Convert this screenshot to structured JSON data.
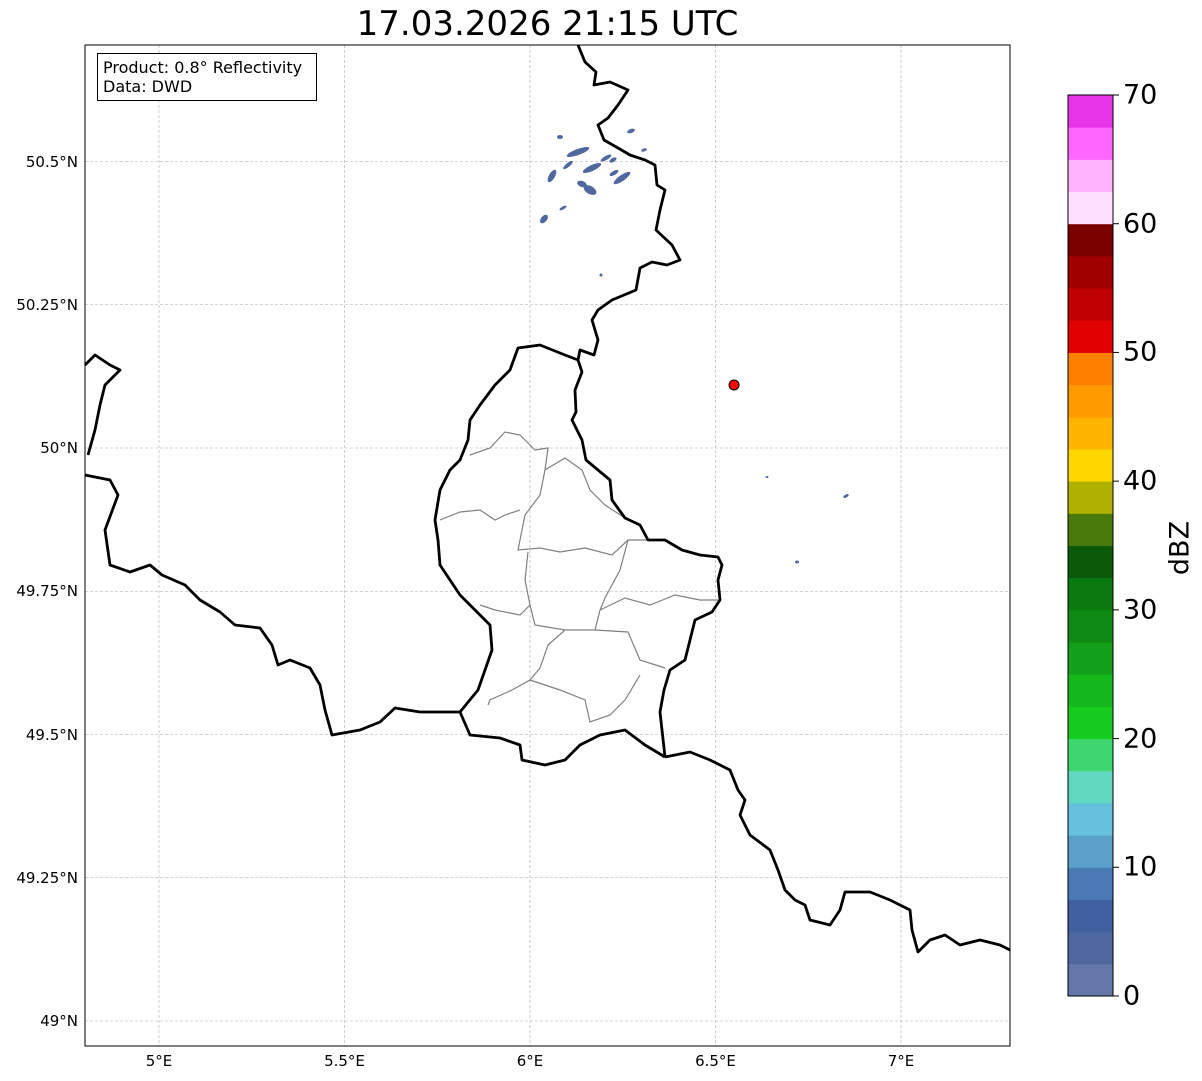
{
  "title": "17.03.2026 21:15 UTC",
  "info_box": {
    "product": "Product: 0.8° Reflectivity",
    "data": "Data: DWD"
  },
  "map": {
    "lat_ticks": [
      {
        "value": 50.5,
        "label": "50.5°N"
      },
      {
        "value": 50.25,
        "label": "50.25°N"
      },
      {
        "value": 50,
        "label": "50°N"
      },
      {
        "value": 49.75,
        "label": "49.75°N"
      },
      {
        "value": 49.5,
        "label": "49.5°N"
      },
      {
        "value": 49.25,
        "label": "49.25°N"
      },
      {
        "value": 49,
        "label": "49°N"
      }
    ],
    "lon_ticks": [
      {
        "value": 5,
        "label": "5°E"
      },
      {
        "value": 5.5,
        "label": "5.5°E"
      },
      {
        "value": 6,
        "label": "6°E"
      },
      {
        "value": 6.5,
        "label": "6.5°E"
      },
      {
        "value": 7,
        "label": "7°E"
      }
    ],
    "radar_site": {
      "lon": 6.55,
      "lat": 50.11,
      "color": "#ff0000"
    },
    "echo_color": "#5068a0"
  },
  "colorbar": {
    "label": "dBZ",
    "min": 0,
    "max": 70,
    "step": 2.5,
    "ticks": [
      {
        "value": 0,
        "label": "0"
      },
      {
        "value": 10,
        "label": "10"
      },
      {
        "value": 20,
        "label": "20"
      },
      {
        "value": 30,
        "label": "30"
      },
      {
        "value": 40,
        "label": "40"
      },
      {
        "value": 50,
        "label": "50"
      },
      {
        "value": 60,
        "label": "60"
      },
      {
        "value": 70,
        "label": "70"
      }
    ],
    "colors": [
      "#6678aa",
      "#5068a0",
      "#4060a0",
      "#4a7ab4",
      "#5aa0c8",
      "#64c0dc",
      "#60d8c0",
      "#3ed66e",
      "#16cc1e",
      "#14b81c",
      "#12a01a",
      "#0e8a14",
      "#0a7a10",
      "#0a5a0a",
      "#4a7a0a",
      "#b0b000",
      "#ffd700",
      "#ffb400",
      "#ff9900",
      "#ff7f00",
      "#e00000",
      "#c00000",
      "#a00000",
      "#7a0000",
      "#ffe0ff",
      "#ffb3ff",
      "#ff66ff",
      "#e734e8"
    ]
  }
}
